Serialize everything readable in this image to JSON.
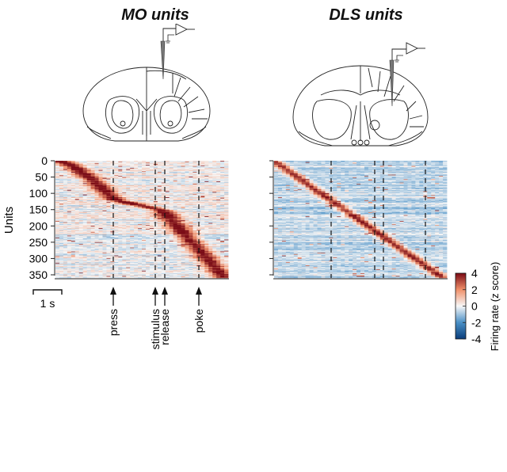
{
  "chart_data": [
    {
      "type": "heatmap",
      "title": "MO units",
      "ylabel": "Units",
      "ylim": [
        0,
        354
      ],
      "yticks": [
        0,
        50,
        100,
        150,
        200,
        250,
        300,
        350
      ],
      "n_units": 354,
      "x_range_s": [
        -2.0,
        4.0
      ],
      "events": [
        {
          "name": "press",
          "time_s": 0.0
        },
        {
          "name": "stimulus",
          "time_s": 1.45
        },
        {
          "name": "release",
          "time_s": 1.8
        },
        {
          "name": "poke",
          "time_s": 3.0
        }
      ],
      "scale_bar_label": "1 s",
      "peak_sequence": "sorted by peak time, diagonal from top-left to bottom-right"
    },
    {
      "type": "heatmap",
      "title": "DLS units",
      "ylim": [
        0,
        354
      ],
      "n_units": 354,
      "events": [
        {
          "name": "press",
          "time_s": 0.0
        },
        {
          "name": "stimulus",
          "time_s": 1.45
        },
        {
          "name": "release",
          "time_s": 1.8
        },
        {
          "name": "poke",
          "time_s": 3.0
        }
      ],
      "peak_sequence": "sorted by peak time, diagonal from top-left to bottom-right"
    }
  ],
  "colorbar": {
    "label": "Firing rate (z score)",
    "ticks": [
      "4",
      "2",
      "0",
      "-2",
      "-4"
    ],
    "range": [
      -4,
      4
    ],
    "colors": {
      "low": "#1f5aa0",
      "mid": "#f7f7f7",
      "high": "#8b0a14"
    }
  },
  "left": {
    "title": "MO units",
    "ylabel": "Units",
    "yticks": [
      "0",
      "50",
      "100",
      "150",
      "200",
      "250",
      "300",
      "350"
    ],
    "scale_bar": "1 s",
    "events": [
      "press",
      "stimulus",
      "release",
      "poke"
    ]
  },
  "right": {
    "title": "DLS units"
  }
}
